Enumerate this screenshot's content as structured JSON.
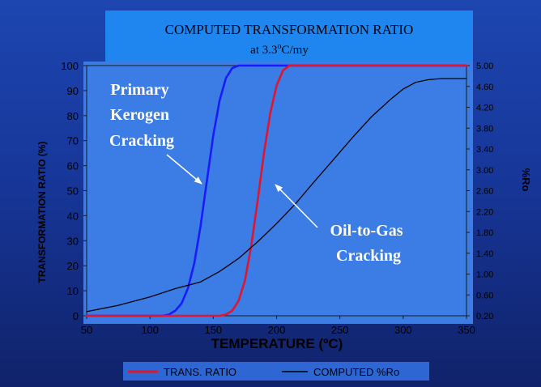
{
  "chart_data": {
    "type": "line",
    "title": "COMPUTED TRANSFORMATION RATIO",
    "subtitle_parts": [
      "at 3.3",
      "o",
      "C/my"
    ],
    "xlabel": "TEMPERATURE (ºC)",
    "ylabel": "TRANSFORMATION RATIO (%)",
    "y2label": "%Ro",
    "xlim": [
      50,
      350
    ],
    "ylim": [
      0,
      100
    ],
    "y2lim": [
      0.2,
      5.0
    ],
    "x_ticks": [
      "50",
      "100",
      "150",
      "200",
      "250",
      "300",
      "350"
    ],
    "y_ticks": [
      "0",
      "10",
      "20",
      "30",
      "40",
      "50",
      "60",
      "70",
      "80",
      "90",
      "100"
    ],
    "y2_ticks": [
      "0.20",
      "0.60",
      "1.00",
      "1.40",
      "1.80",
      "2.20",
      "2.60",
      "3.00",
      "3.40",
      "3.80",
      "4.20",
      "4.60",
      "5.00"
    ],
    "series": [
      {
        "key": "primary_kerogen",
        "axis": "left",
        "color": "#1a1aff",
        "x": [
          50,
          110,
          115,
          120,
          125,
          130,
          135,
          140,
          145,
          150,
          155,
          160,
          165,
          170,
          350
        ],
        "y": [
          0,
          0,
          0.5,
          2,
          5,
          11,
          21,
          36,
          54,
          72,
          86,
          95,
          99,
          100,
          100
        ]
      },
      {
        "key": "oil_to_gas",
        "axis": "left",
        "color": "#e01530",
        "x": [
          50,
          155,
          160,
          165,
          170,
          175,
          180,
          185,
          190,
          195,
          200,
          205,
          210,
          350
        ],
        "y": [
          0,
          0,
          0.5,
          2,
          6,
          14,
          28,
          46,
          65,
          81,
          92,
          98,
          100,
          100
        ]
      },
      {
        "name": "COMPUTED %Ro",
        "key": "computed_ro",
        "axis": "right",
        "color": "#000000",
        "x": [
          50,
          75,
          100,
          120,
          140,
          155,
          170,
          185,
          200,
          215,
          230,
          245,
          260,
          275,
          290,
          300,
          310,
          320,
          330,
          340,
          350
        ],
        "y": [
          0.28,
          0.4,
          0.56,
          0.72,
          0.85,
          1.05,
          1.3,
          1.62,
          1.97,
          2.35,
          2.78,
          3.2,
          3.62,
          4.02,
          4.35,
          4.55,
          4.68,
          4.73,
          4.75,
          4.75,
          4.75
        ]
      }
    ],
    "legend": {
      "placement": "bottom",
      "entries": [
        {
          "label": "TRANS. RATIO",
          "color": "#e01530"
        },
        {
          "label": "COMPUTED %Ro",
          "color": "#000000"
        }
      ]
    },
    "annotations": [
      {
        "key": "primary",
        "lines": [
          "Primary",
          "Kerogen",
          "Cracking"
        ]
      },
      {
        "key": "oilgas",
        "lines": [
          "Oil-to-Gas",
          "Cracking"
        ]
      }
    ],
    "colors": {
      "title_panel": "#1f86f0",
      "plot_panel": "#3b7de4",
      "text": "#ffffff",
      "axis_text": "#000000"
    }
  }
}
